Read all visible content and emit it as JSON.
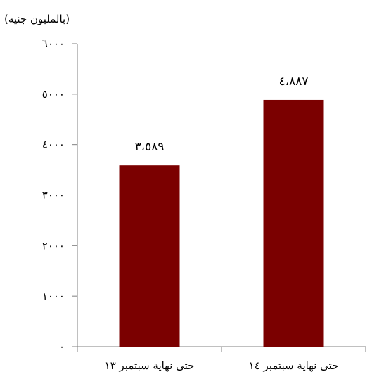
{
  "chart_data": {
    "type": "bar",
    "unit_label": "(بالمليون جنيه)",
    "categories": [
      "حتى نهاية سبتمبر ١٣",
      "حتى نهاية سبتمبر ١٤"
    ],
    "values": [
      3589,
      4887
    ],
    "data_labels": [
      "٣،٥٨٩",
      "٤،٨٨٧"
    ],
    "y_ticks": [
      0,
      1000,
      2000,
      3000,
      4000,
      5000,
      6000
    ],
    "y_tick_labels": [
      "٠",
      "١٠٠٠",
      "٢٠٠٠",
      "٣٠٠٠",
      "٤٠٠٠",
      "٥٠٠٠",
      "٦٠٠٠"
    ],
    "ylim": [
      0,
      6000
    ],
    "grid": false,
    "legend": "none",
    "bar_color": "#7B0000",
    "axis_color": "#808080"
  }
}
